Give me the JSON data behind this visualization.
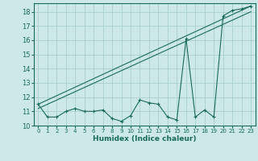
{
  "xlabel": "Humidex (Indice chaleur)",
  "bg_color": "#cce8e8",
  "grid_color": "#aacfcf",
  "line_color": "#1a6b5a",
  "xlim": [
    -0.5,
    23.5
  ],
  "ylim": [
    10.0,
    18.6
  ],
  "yticks": [
    10,
    11,
    12,
    13,
    14,
    15,
    16,
    17,
    18
  ],
  "xticks": [
    0,
    1,
    2,
    3,
    4,
    5,
    6,
    7,
    8,
    9,
    10,
    11,
    12,
    13,
    14,
    15,
    16,
    17,
    18,
    19,
    20,
    21,
    22,
    23
  ],
  "data_x": [
    0,
    1,
    2,
    3,
    4,
    5,
    6,
    7,
    8,
    9,
    10,
    11,
    12,
    13,
    14,
    15,
    16,
    17,
    18,
    19,
    20,
    21,
    22,
    23
  ],
  "data_y": [
    11.5,
    10.6,
    10.6,
    11.0,
    11.2,
    11.0,
    11.0,
    11.1,
    10.5,
    10.3,
    10.7,
    11.8,
    11.6,
    11.5,
    10.6,
    10.4,
    16.1,
    10.6,
    11.1,
    10.6,
    17.7,
    18.1,
    18.2,
    18.4
  ],
  "line1_x": [
    0,
    23
  ],
  "line1_y": [
    11.5,
    18.4
  ],
  "line2_x": [
    0,
    23
  ],
  "line2_y": [
    11.2,
    18.0
  ]
}
